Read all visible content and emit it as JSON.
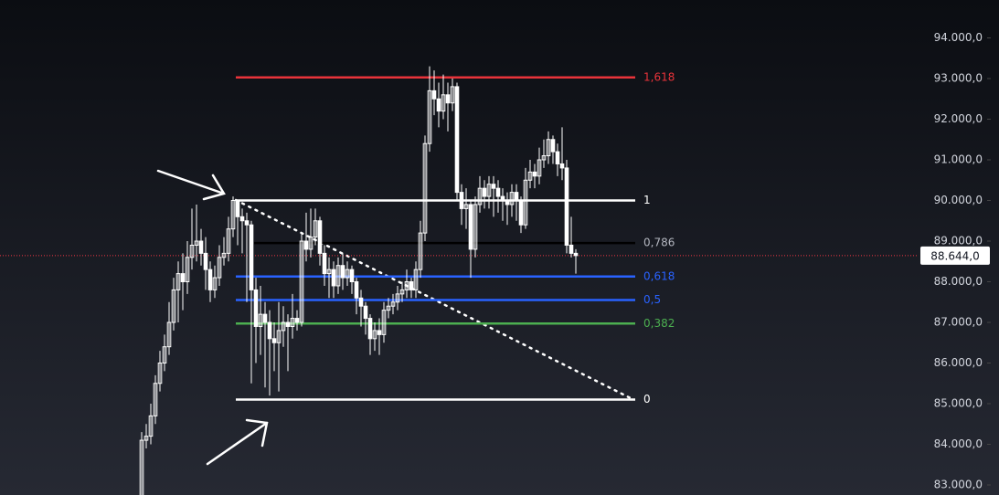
{
  "chart_data": {
    "type": "candlestick",
    "color": "#ffffff",
    "open": [
      82700,
      84100,
      84200,
      84700,
      85500,
      86000,
      86400,
      87000,
      87800,
      88200,
      88000,
      88600,
      88900,
      89000,
      88700,
      88300,
      87800,
      88100,
      88600,
      88700,
      89300,
      90000,
      89600,
      89500,
      89400,
      87800,
      86900,
      87200,
      87000,
      86600,
      86500,
      86800,
      87000,
      86900,
      87100,
      87000,
      89000,
      88800,
      89100,
      89500,
      88700,
      88200,
      88300,
      87900,
      88400,
      88100,
      88300,
      88000,
      87600,
      87400,
      87100,
      86600,
      86800,
      86700,
      87300,
      87400,
      87500,
      87700,
      87800,
      88000,
      87800,
      88300,
      89200,
      91400,
      92700,
      92500,
      92200,
      92600,
      92400,
      92800,
      90200,
      89800,
      89900,
      88800,
      89900,
      90300,
      90100,
      90400,
      90300,
      90100,
      90000,
      89900,
      90200,
      90000,
      89400,
      90500,
      90700,
      90600,
      91000,
      91100,
      91500,
      91200,
      90900,
      90800,
      88900,
      88700
    ],
    "high": [
      84300,
      84500,
      85000,
      85700,
      86300,
      86700,
      87500,
      88100,
      88500,
      88700,
      89000,
      89800,
      89900,
      89300,
      89100,
      88500,
      88400,
      88900,
      89100,
      89600,
      90100,
      90000,
      89800,
      89700,
      89500,
      88100,
      87900,
      87500,
      87300,
      87000,
      87500,
      87400,
      87200,
      87700,
      87300,
      89200,
      89700,
      89800,
      89800,
      89600,
      88900,
      88600,
      88500,
      88600,
      88700,
      88500,
      88400,
      88100,
      87800,
      87500,
      87200,
      87000,
      87100,
      87500,
      87600,
      87700,
      87900,
      88000,
      88300,
      88100,
      88500,
      89500,
      91600,
      93300,
      93200,
      92900,
      93100,
      92900,
      93000,
      92900,
      90400,
      90300,
      90000,
      90100,
      90600,
      90500,
      90600,
      90600,
      90500,
      90300,
      90200,
      90400,
      90400,
      90100,
      90800,
      91000,
      90900,
      91300,
      91500,
      91700,
      91600,
      91400,
      91800,
      91000,
      89600,
      88800
    ],
    "low": [
      82600,
      83900,
      84000,
      84500,
      85300,
      85800,
      86200,
      86800,
      87000,
      87300,
      87700,
      88300,
      88500,
      88400,
      87800,
      87500,
      87600,
      87900,
      88400,
      88500,
      89100,
      88900,
      88700,
      87500,
      85500,
      86000,
      86200,
      85400,
      85200,
      85800,
      85300,
      86400,
      85800,
      86600,
      86800,
      86900,
      88500,
      88600,
      88900,
      88400,
      87900,
      87600,
      87600,
      87700,
      87800,
      87900,
      87700,
      87200,
      86900,
      86700,
      86200,
      86300,
      86200,
      86500,
      87100,
      87200,
      87300,
      87500,
      87600,
      87600,
      87600,
      88100,
      89000,
      91200,
      92100,
      91800,
      92000,
      91700,
      92200,
      90000,
      89400,
      89300,
      88100,
      88600,
      89700,
      89800,
      89800,
      89600,
      89700,
      89500,
      89400,
      89600,
      89500,
      89200,
      89300,
      90300,
      90300,
      90400,
      90800,
      90900,
      90900,
      90600,
      90500,
      88700,
      88600,
      88200
    ],
    "close": [
      84100,
      84200,
      84700,
      85500,
      86000,
      86400,
      87000,
      87800,
      88200,
      88000,
      88600,
      88900,
      89000,
      88700,
      88300,
      87800,
      88100,
      88600,
      88700,
      89300,
      90000,
      89600,
      89500,
      89400,
      87800,
      86900,
      87200,
      87000,
      86600,
      86500,
      86800,
      87000,
      86900,
      87100,
      87000,
      89000,
      88800,
      89100,
      89500,
      88700,
      88200,
      88300,
      87900,
      88400,
      88100,
      88300,
      88000,
      87600,
      87400,
      87100,
      86600,
      86800,
      86700,
      87300,
      87400,
      87500,
      87700,
      87800,
      88000,
      87800,
      88300,
      89200,
      91400,
      92700,
      92500,
      92200,
      92600,
      92400,
      92800,
      90200,
      89800,
      89900,
      88800,
      89900,
      90300,
      90100,
      90400,
      90300,
      90100,
      90000,
      89900,
      90200,
      90000,
      89400,
      90500,
      90700,
      90600,
      91000,
      91100,
      91500,
      91200,
      90900,
      90800,
      88900,
      88700,
      88644
    ],
    "ylim": [
      82753,
      94933
    ],
    "yticks": [
      {
        "value": 83000,
        "label": "83.000,0"
      },
      {
        "value": 84000,
        "label": "84.000,0"
      },
      {
        "value": 85000,
        "label": "85.000,0"
      },
      {
        "value": 86000,
        "label": "86.000,0"
      },
      {
        "value": 87000,
        "label": "87.000,0"
      },
      {
        "value": 88000,
        "label": "88.000,0"
      },
      {
        "value": 89000,
        "label": "89.000,0"
      },
      {
        "value": 90000,
        "label": "90.000,0"
      },
      {
        "value": 91000,
        "label": "91.000,0"
      },
      {
        "value": 92000,
        "label": "92.000,0"
      },
      {
        "value": 93000,
        "label": "93.000,0"
      },
      {
        "value": 94000,
        "label": "94.000,0"
      }
    ],
    "last_price": {
      "value": 88644,
      "label": "88.644,0"
    },
    "fib_anchor_high": 90000,
    "fib_anchor_low": 85100,
    "fib_levels": [
      {
        "ratio": {
          "value": 1.618,
          "label": "1,618"
        },
        "color": "#e8333a"
      },
      {
        "ratio": 1,
        "color": "#ffffff"
      },
      {
        "ratio": {
          "value": 0.786,
          "label": "0,786"
        },
        "color": "#000000"
      },
      {
        "ratio": {
          "value": 0.618,
          "label": "0,618"
        },
        "color": "#2962ff"
      },
      {
        "ratio": {
          "value": 0.5,
          "label": "0,5"
        },
        "color": "#2962ff"
      },
      {
        "ratio": {
          "value": 0.382,
          "label": "0,382"
        },
        "color": "#4caf50"
      },
      {
        "ratio": 0,
        "color": "#ffffff"
      }
    ]
  }
}
